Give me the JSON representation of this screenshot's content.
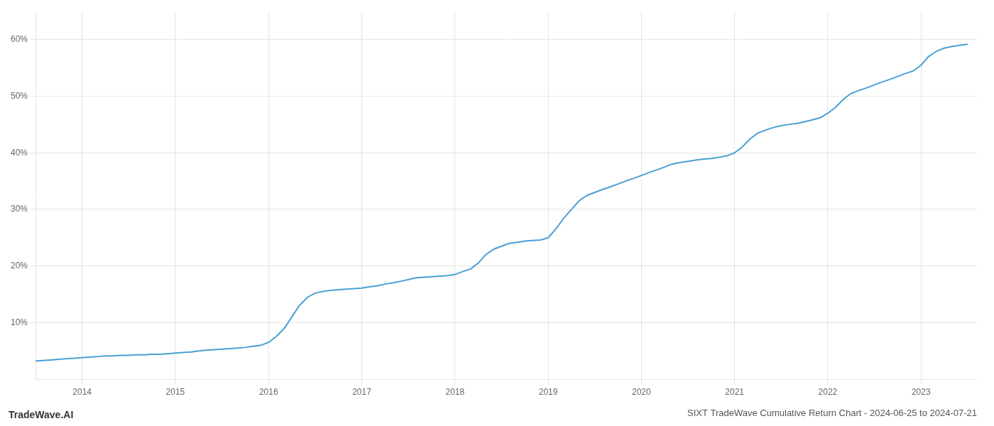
{
  "chart_data": {
    "type": "line",
    "title": "SIXT TradeWave Cumulative Return Chart - 2024-06-25 to 2024-07-21",
    "annotations": [
      "TradeWave.AI"
    ],
    "color": "#4a9fd4",
    "x": [
      2013.5,
      2013.58,
      2013.67,
      2013.75,
      2013.83,
      2013.92,
      2014.0,
      2014.08,
      2014.17,
      2014.25,
      2014.33,
      2014.42,
      2014.5,
      2014.58,
      2014.67,
      2014.75,
      2014.83,
      2014.92,
      2015.0,
      2015.08,
      2015.17,
      2015.25,
      2015.33,
      2015.42,
      2015.5,
      2015.58,
      2015.67,
      2015.75,
      2015.83,
      2015.92,
      2016.0,
      2016.08,
      2016.17,
      2016.25,
      2016.33,
      2016.42,
      2016.5,
      2016.58,
      2016.67,
      2016.75,
      2016.83,
      2016.92,
      2017.0,
      2017.08,
      2017.17,
      2017.25,
      2017.33,
      2017.42,
      2017.5,
      2017.58,
      2017.67,
      2017.75,
      2017.83,
      2017.92,
      2018.0,
      2018.08,
      2018.17,
      2018.25,
      2018.33,
      2018.42,
      2018.5,
      2018.58,
      2018.67,
      2018.75,
      2018.83,
      2018.92,
      2019.0,
      2019.08,
      2019.17,
      2019.25,
      2019.33,
      2019.42,
      2019.5,
      2019.58,
      2019.67,
      2019.75,
      2019.83,
      2019.92,
      2020.0,
      2020.08,
      2020.17,
      2020.25,
      2020.33,
      2020.42,
      2020.5,
      2020.58,
      2020.67,
      2020.75,
      2020.83,
      2020.92,
      2021.0,
      2021.08,
      2021.17,
      2021.25,
      2021.33,
      2021.42,
      2021.5,
      2021.58,
      2021.67,
      2021.75,
      2021.83,
      2021.92,
      2022.0,
      2022.08,
      2022.17,
      2022.25,
      2022.33,
      2022.42,
      2022.5,
      2022.58,
      2022.67,
      2022.75,
      2022.83,
      2022.92,
      2023.0,
      2023.08,
      2023.17,
      2023.25,
      2023.33,
      2023.42,
      2023.5
    ],
    "values": [
      3.2,
      3.3,
      3.4,
      3.5,
      3.6,
      3.7,
      3.8,
      3.9,
      4.0,
      4.1,
      4.1,
      4.2,
      4.2,
      4.3,
      4.3,
      4.4,
      4.4,
      4.5,
      4.6,
      4.7,
      4.8,
      5.0,
      5.1,
      5.2,
      5.3,
      5.4,
      5.5,
      5.6,
      5.8,
      6.0,
      6.5,
      7.5,
      9.0,
      11.0,
      13.0,
      14.5,
      15.2,
      15.5,
      15.7,
      15.8,
      15.9,
      16.0,
      16.1,
      16.3,
      16.5,
      16.8,
      17.0,
      17.3,
      17.6,
      17.9,
      18.0,
      18.1,
      18.2,
      18.3,
      18.5,
      19.0,
      19.5,
      20.5,
      22.0,
      23.0,
      23.5,
      24.0,
      24.2,
      24.4,
      24.5,
      24.6,
      25.0,
      26.5,
      28.5,
      30.0,
      31.5,
      32.5,
      33.0,
      33.5,
      34.0,
      34.5,
      35.0,
      35.5,
      36.0,
      36.5,
      37.0,
      37.5,
      38.0,
      38.3,
      38.5,
      38.7,
      38.9,
      39.0,
      39.2,
      39.5,
      40.0,
      41.0,
      42.5,
      43.5,
      44.0,
      44.5,
      44.8,
      45.0,
      45.2,
      45.5,
      45.8,
      46.2,
      47.0,
      48.0,
      49.5,
      50.5,
      51.0,
      51.5,
      52.0,
      52.5,
      53.0,
      53.5,
      54.0,
      54.5,
      55.5,
      57.0,
      58.0,
      58.5,
      58.8,
      59.0,
      59.2
    ],
    "xlim": [
      2013.5,
      2023.6
    ],
    "ylim": [
      0,
      65
    ],
    "xticks": [
      2014,
      2015,
      2016,
      2017,
      2018,
      2019,
      2020,
      2021,
      2022,
      2023
    ],
    "yticks": [
      {
        "value": 10,
        "label": "10%"
      },
      {
        "value": 20,
        "label": "20%"
      },
      {
        "value": 30,
        "label": "30%"
      },
      {
        "value": 40,
        "label": "40%"
      },
      {
        "value": 50,
        "label": "50%"
      },
      {
        "value": 60,
        "label": "60%"
      }
    ],
    "grid": true
  }
}
